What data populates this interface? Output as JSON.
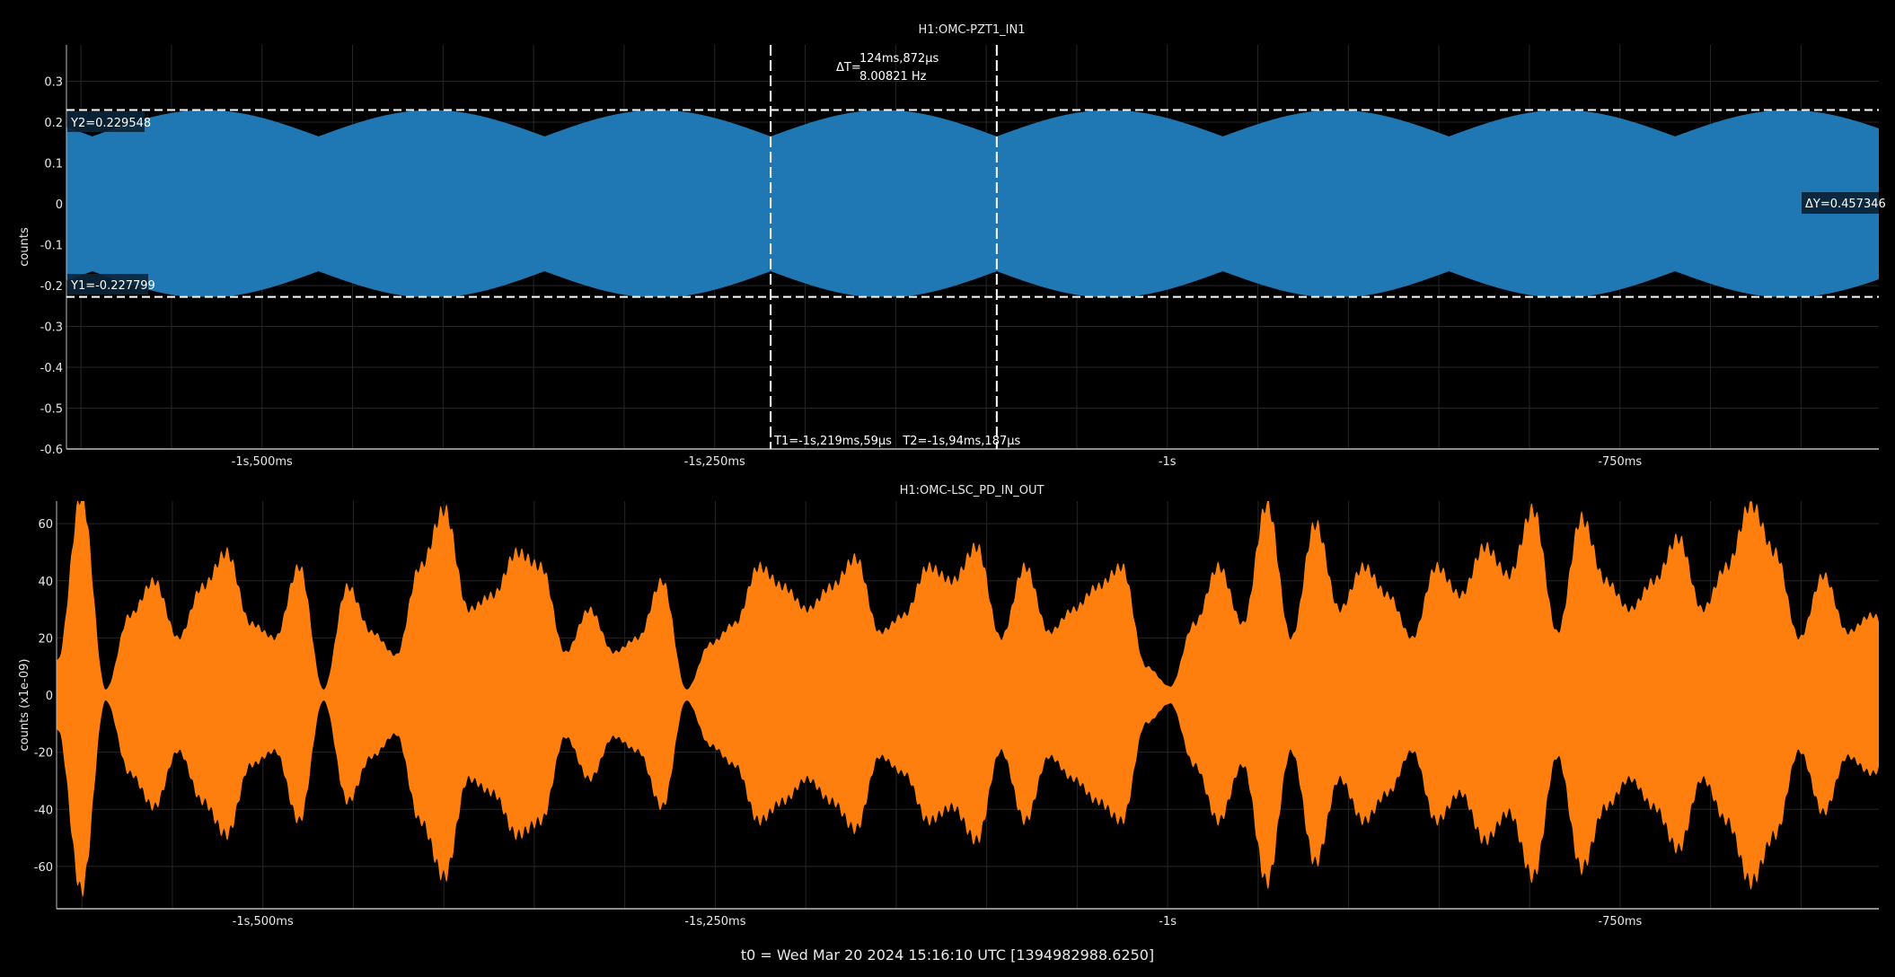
{
  "footer": "t0 = Wed Mar 20 2024 15:16:10 UTC [1394982988.6250]",
  "chart_data": [
    {
      "type": "area",
      "title": "H1:OMC-PZT1_IN1",
      "xlabel": "",
      "ylabel": "counts",
      "color": "#1f77b4",
      "xlim_ms": [
        -1608,
        -607
      ],
      "ylim": [
        -0.6,
        0.389
      ],
      "grid": true,
      "x_ticks": [
        {
          "ms": -1500,
          "label": "-1s,500ms"
        },
        {
          "ms": -1250,
          "label": "-1s,250ms"
        },
        {
          "ms": -1000,
          "label": "-1s"
        },
        {
          "ms": -750,
          "label": "-750ms"
        }
      ],
      "y_ticks": [
        {
          "v": 0.3,
          "label": "0.3"
        },
        {
          "v": 0.2,
          "label": "0.2"
        },
        {
          "v": 0.1,
          "label": "0.1"
        },
        {
          "v": 0,
          "label": "0"
        },
        {
          "v": -0.1,
          "label": "-0.1"
        },
        {
          "v": -0.2,
          "label": "-0.2"
        },
        {
          "v": -0.3,
          "label": "-0.3"
        },
        {
          "v": -0.4,
          "label": "-0.4"
        },
        {
          "v": -0.5,
          "label": "-0.5"
        },
        {
          "v": -0.6,
          "label": "-0.6"
        }
      ],
      "signal": {
        "envelope_max": 0.2295,
        "envelope_min_at_cusp": 0.165,
        "cusp_period_ms": 124.872,
        "cusp_ref_ms": -1219.059
      },
      "cursors": {
        "t1_ms": -1219.059,
        "t2_ms": -1094.187,
        "y1": -0.227799,
        "y2": 0.229548,
        "y2_label": "Y2=0.229548",
        "y1_label": "Y1=-0.227799",
        "dy_label": "ΔY=0.457346",
        "dt_prefix": "ΔT=",
        "dt_value": "124ms,872µs",
        "dt_freq": "8.00821 Hz",
        "t_label": "T1=-1s,219ms,59µs   T2=-1s,94ms,187µs"
      }
    },
    {
      "type": "area",
      "title": "H1:OMC-LSC_PD_IN_OUT",
      "xlabel": "",
      "ylabel": "counts (x1e-09)",
      "color": "#ff7f0e",
      "xlim_ms": [
        -1614,
        -607
      ],
      "ylim": [
        -74.8,
        67.9
      ],
      "grid": true,
      "x_ticks": [
        {
          "ms": -1500,
          "label": "-1s,500ms"
        },
        {
          "ms": -1250,
          "label": "-1s,250ms"
        },
        {
          "ms": -1000,
          "label": "-1s"
        },
        {
          "ms": -750,
          "label": "-750ms"
        }
      ],
      "y_ticks": [
        {
          "v": 60,
          "label": "60"
        },
        {
          "v": 40,
          "label": "40"
        },
        {
          "v": 20,
          "label": "20"
        },
        {
          "v": 0,
          "label": "0"
        },
        {
          "v": -20,
          "label": "-20"
        },
        {
          "v": -40,
          "label": "-40"
        },
        {
          "v": -60,
          "label": "-60"
        }
      ],
      "envelope_t0_ms": -1613.6,
      "envelope_step_ms": 13.37,
      "envelope": [
        12,
        70,
        2,
        28,
        40,
        20,
        38,
        50,
        25,
        20,
        45,
        2,
        38,
        22,
        14,
        45,
        65,
        30,
        35,
        50,
        45,
        15,
        30,
        15,
        20,
        40,
        2,
        18,
        25,
        45,
        38,
        30,
        38,
        48,
        22,
        28,
        45,
        40,
        52,
        20,
        45,
        22,
        30,
        38,
        45,
        10,
        3,
        25,
        45,
        25,
        67,
        20,
        60,
        30,
        45,
        35,
        20,
        45,
        35,
        52,
        42,
        65,
        22,
        62,
        40,
        30,
        40,
        55,
        30,
        45,
        67,
        50,
        20,
        42,
        22,
        28,
        20
      ]
    }
  ]
}
